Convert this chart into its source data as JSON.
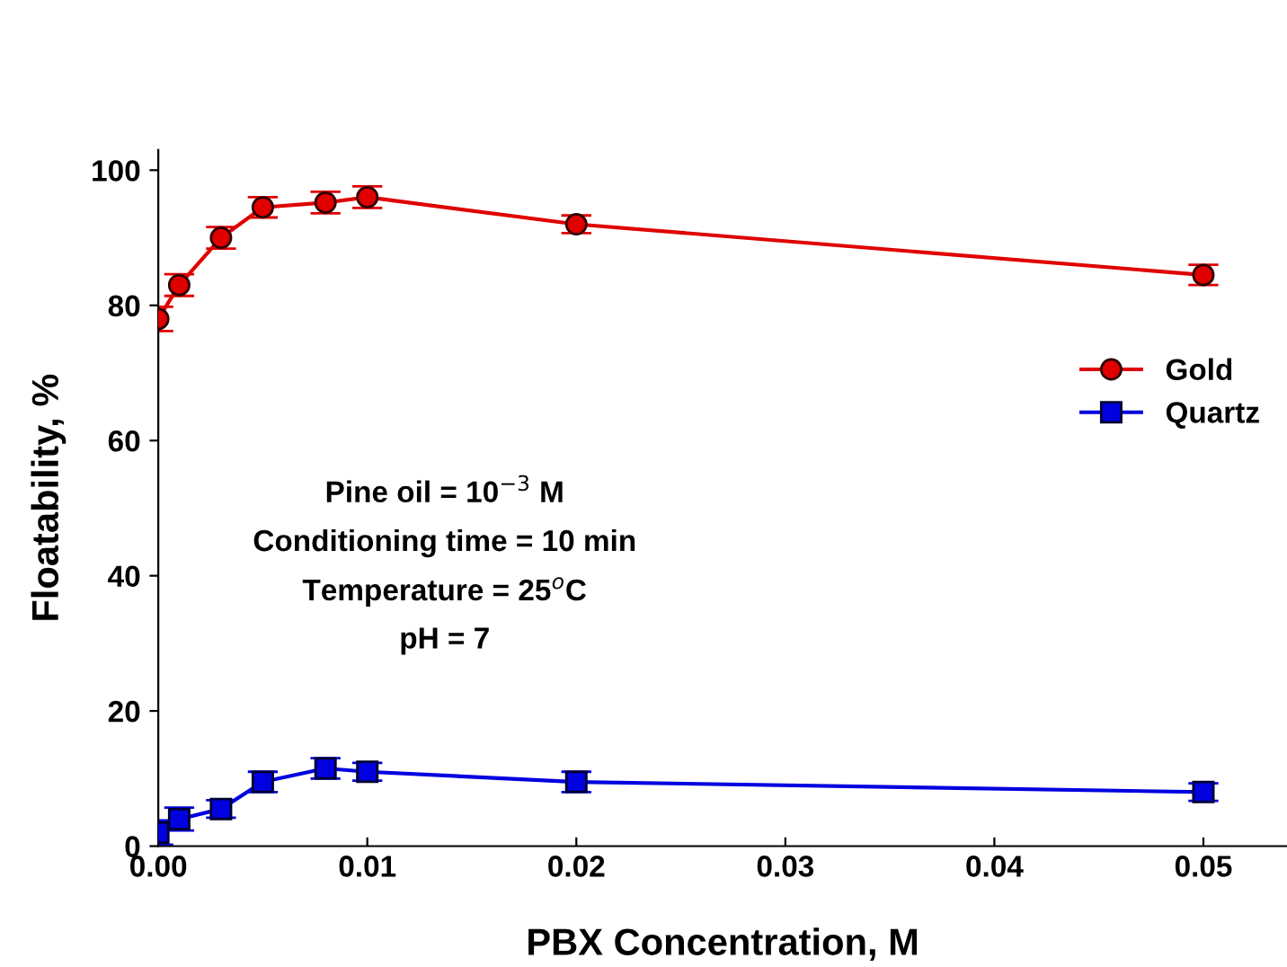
{
  "chart_data": {
    "type": "line",
    "xlabel": "PBX Concentration, M",
    "ylabel": "Floatability, %",
    "x": [
      0,
      0.001,
      0.003,
      0.005,
      0.008,
      0.01,
      0.02,
      0.05
    ],
    "series": [
      {
        "name": "Gold",
        "color": "#e00000",
        "marker": "circle",
        "values": [
          78,
          83,
          90,
          94.5,
          95.2,
          96,
          92,
          84.5
        ],
        "errors": [
          1.8,
          1.6,
          1.6,
          1.5,
          1.6,
          1.6,
          1.3,
          1.5
        ]
      },
      {
        "name": "Quartz",
        "color": "#0000e0",
        "marker": "square",
        "values": [
          2,
          4,
          5.5,
          9.5,
          11.5,
          11,
          9.5,
          8
        ],
        "errors": [
          1.8,
          1.7,
          1.3,
          1.5,
          1.5,
          1.3,
          1.5,
          1.3
        ]
      }
    ],
    "xlim": [
      0,
      0.054
    ],
    "ylim": [
      0,
      103
    ],
    "xticks": [
      {
        "value": 0,
        "label": "0.00"
      },
      0.01,
      0.02,
      0.03,
      0.04,
      0.05
    ],
    "yticks": [
      0,
      20,
      40,
      60,
      80,
      100
    ],
    "grid": false,
    "legend": "right",
    "line_style": "solid",
    "annotations": [
      "Pine oil = 10$^{−3}$ M",
      "Conditioning time = 10 min",
      "Temperature = 25$^{o}$C",
      "pH = 7"
    ]
  }
}
